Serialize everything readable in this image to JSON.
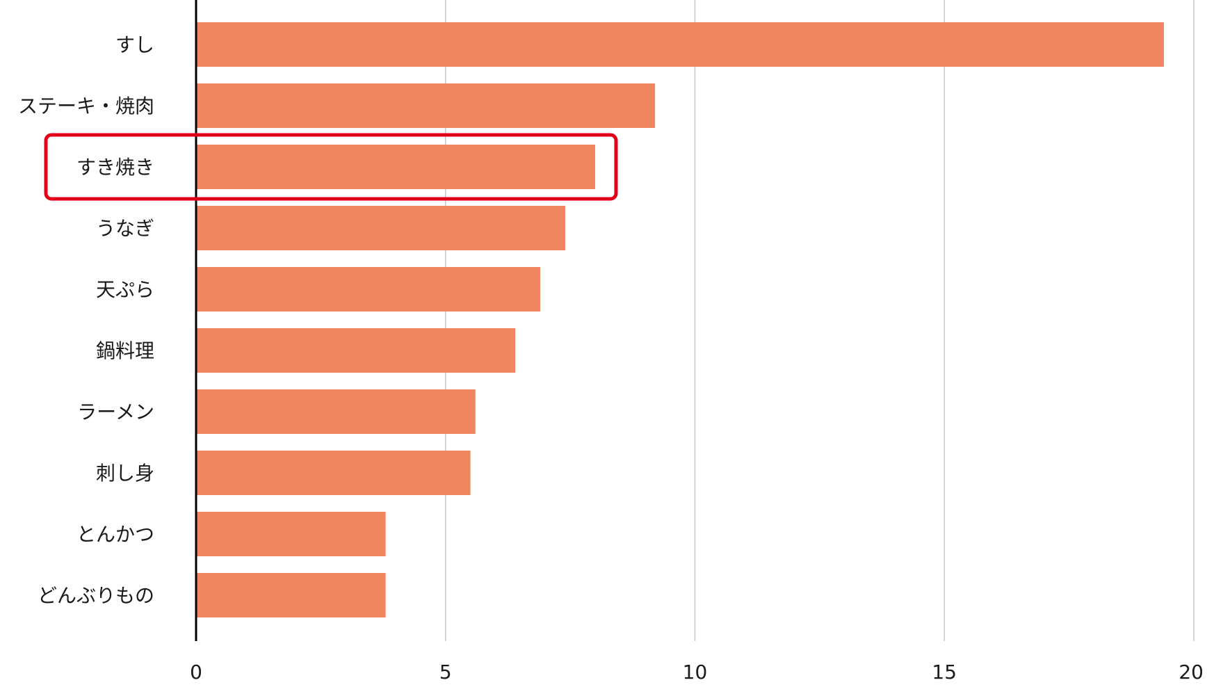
{
  "chart_data": {
    "type": "bar",
    "orientation": "horizontal",
    "categories": [
      "すし",
      "ステーキ・焼肉",
      "すき焼き",
      "うなぎ",
      "天ぷら",
      "鍋料理",
      "ラーメン",
      "刺し身",
      "とんかつ",
      "どんぶりもの"
    ],
    "values": [
      19.4,
      9.2,
      8.0,
      7.4,
      6.9,
      6.4,
      5.6,
      5.5,
      3.8,
      3.8
    ],
    "xlim": [
      0,
      20
    ],
    "xticks": [
      "0",
      "5",
      "10",
      "15",
      "20"
    ],
    "title": "",
    "xlabel": "",
    "ylabel": "",
    "grid": true,
    "legend": "none",
    "highlighted_category": "すき焼き",
    "colors": {
      "bar": "#EF8660",
      "highlight": "#E0001A",
      "grid": "#C8C8C8",
      "axis": "#000000"
    }
  }
}
